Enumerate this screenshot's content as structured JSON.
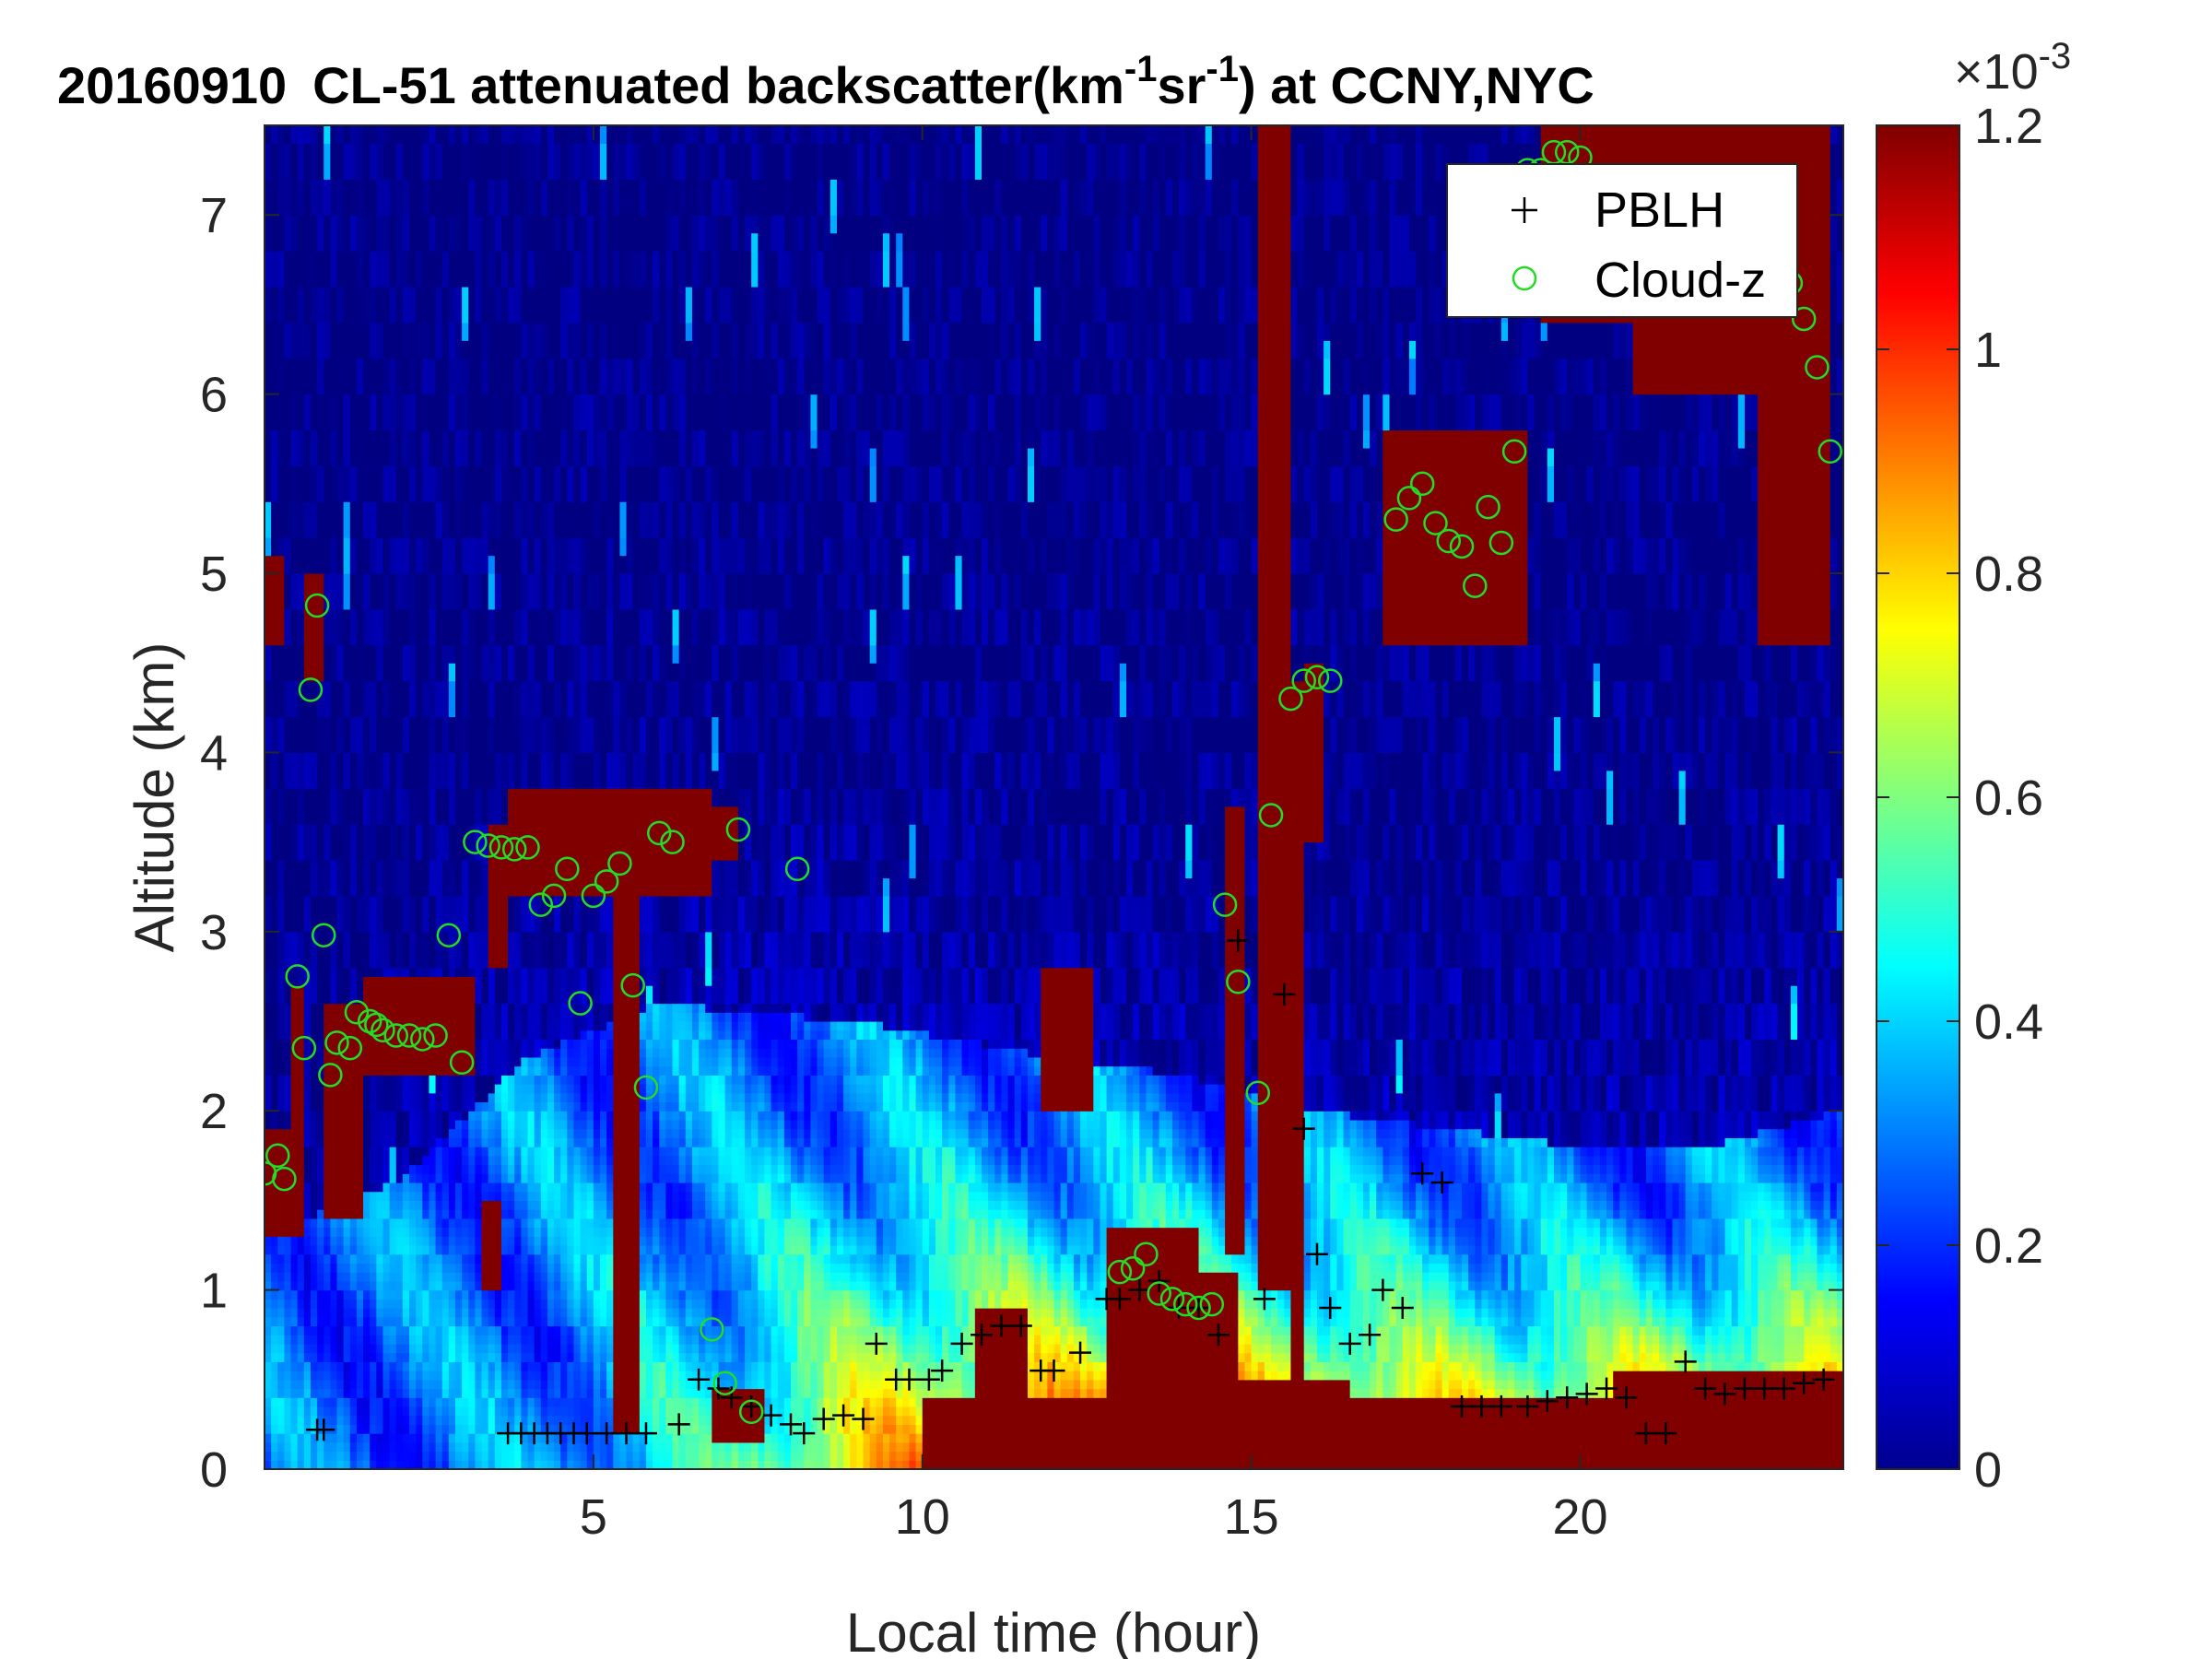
{
  "chart_data": {
    "type": "heatmap",
    "title_parts": {
      "date": "20160910",
      "prefix": "CL-51 attenuated backscatter(km",
      "exp1": "-1",
      "mid": "sr",
      "exp2": "-1",
      "suffix": ") at CCNY,NYC"
    },
    "xlabel": "Local time (hour)",
    "ylabel": "Altitude (km)",
    "xlim": [
      0,
      24
    ],
    "ylim": [
      0,
      7.5
    ],
    "xticks": [
      "5",
      "10",
      "15",
      "20"
    ],
    "yticks": [
      "0",
      "1",
      "2",
      "3",
      "4",
      "5",
      "6",
      "7"
    ],
    "colorbar": {
      "colormap": "jet",
      "range": [
        0,
        1.2
      ],
      "ticks": [
        "0",
        "0.2",
        "0.4",
        "0.6",
        "0.8",
        "1",
        "1.2"
      ],
      "exponent_base": "×10",
      "exponent": "-3"
    },
    "legend": {
      "position": "top-right",
      "items": [
        {
          "label": "PBLH",
          "marker": "plus",
          "color": "#000000"
        },
        {
          "label": "Cloud-z",
          "marker": "circle",
          "color": "#22dd22"
        }
      ]
    },
    "pblh_series": {
      "name": "PBLH",
      "x": [
        0.8,
        0.9,
        3.7,
        3.9,
        4.1,
        4.3,
        4.5,
        4.7,
        4.9,
        5.2,
        5.5,
        5.8,
        6.3,
        6.6,
        6.9,
        7.1,
        7.4,
        7.7,
        8.0,
        8.2,
        8.5,
        8.8,
        9.1,
        9.3,
        9.6,
        9.8,
        10.1,
        10.3,
        10.6,
        10.9,
        11.2,
        11.5,
        11.8,
        12.0,
        12.4,
        12.8,
        13.0,
        13.3,
        13.6,
        13.9,
        14.2,
        14.5,
        14.8,
        15.2,
        15.5,
        15.8,
        16.0,
        16.2,
        16.5,
        16.8,
        17.0,
        17.3,
        17.6,
        17.9,
        18.2,
        18.5,
        18.8,
        19.2,
        19.5,
        19.8,
        20.1,
        20.4,
        20.7,
        21.0,
        21.3,
        21.6,
        21.9,
        22.2,
        22.5,
        22.8,
        23.1,
        23.4,
        23.7
      ],
      "y": [
        0.22,
        0.22,
        0.2,
        0.2,
        0.2,
        0.2,
        0.2,
        0.2,
        0.2,
        0.2,
        0.2,
        0.2,
        0.25,
        0.5,
        0.45,
        0.4,
        0.35,
        0.3,
        0.25,
        0.2,
        0.28,
        0.3,
        0.28,
        0.7,
        0.5,
        0.5,
        0.5,
        0.55,
        0.7,
        0.75,
        0.8,
        0.8,
        0.55,
        0.55,
        0.65,
        0.95,
        0.95,
        1.0,
        1.05,
        0.9,
        0.9,
        0.75,
        2.95,
        0.95,
        2.65,
        1.9,
        1.2,
        0.9,
        0.7,
        0.75,
        1.0,
        0.9,
        1.65,
        1.6,
        0.35,
        0.35,
        0.35,
        0.35,
        0.38,
        0.4,
        0.42,
        0.45,
        0.4,
        0.2,
        0.2,
        0.6,
        0.45,
        0.42,
        0.45,
        0.45,
        0.45,
        0.48,
        0.5
      ]
    },
    "cloud_series": {
      "name": "Cloud-z",
      "x": [
        0.0,
        0.2,
        0.3,
        0.5,
        0.6,
        0.7,
        0.8,
        0.9,
        1.0,
        1.1,
        1.3,
        1.4,
        1.6,
        1.7,
        1.8,
        2.0,
        2.2,
        2.4,
        2.6,
        2.8,
        3.0,
        3.2,
        3.4,
        3.6,
        3.8,
        4.0,
        4.2,
        4.4,
        4.6,
        4.8,
        5.0,
        5.2,
        5.4,
        5.6,
        5.8,
        6.0,
        6.2,
        6.8,
        7.0,
        7.2,
        7.4,
        8.1,
        13.0,
        13.2,
        13.4,
        13.6,
        13.8,
        14.0,
        14.2,
        14.4,
        14.6,
        14.8,
        15.1,
        15.3,
        15.6,
        15.8,
        16.0,
        16.2,
        17.2,
        17.4,
        17.6,
        17.8,
        18.0,
        18.2,
        18.4,
        18.6,
        18.8,
        19.0,
        19.2,
        19.4,
        19.6,
        19.8,
        20.0,
        23.0,
        23.2,
        23.4,
        23.6,
        23.8
      ],
      "y": [
        1.65,
        1.75,
        1.62,
        2.75,
        2.35,
        4.35,
        4.82,
        2.98,
        2.2,
        2.38,
        2.35,
        2.55,
        2.5,
        2.48,
        2.45,
        2.42,
        2.42,
        2.4,
        2.42,
        2.98,
        2.27,
        3.5,
        3.48,
        3.47,
        3.46,
        3.47,
        3.15,
        3.2,
        3.35,
        2.6,
        3.2,
        3.28,
        3.38,
        2.7,
        2.13,
        3.55,
        3.5,
        0.78,
        0.48,
        3.57,
        0.32,
        3.35,
        1.1,
        1.12,
        1.2,
        0.98,
        0.95,
        0.92,
        0.9,
        0.92,
        3.15,
        2.72,
        2.1,
        3.65,
        4.3,
        4.4,
        4.42,
        4.4,
        5.3,
        5.42,
        5.5,
        5.28,
        5.18,
        5.15,
        4.93,
        5.37,
        5.17,
        5.68,
        7.25,
        7.25,
        7.35,
        7.35,
        7.32,
        6.8,
        6.62,
        6.42,
        6.15,
        5.68
      ]
    }
  }
}
